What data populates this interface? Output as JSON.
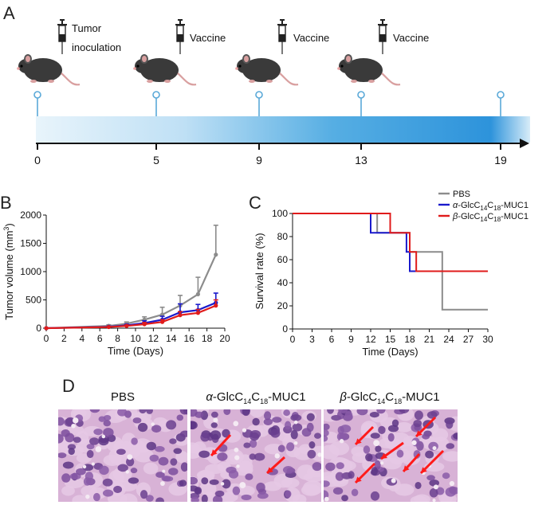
{
  "panels": {
    "a": "A",
    "b": "B",
    "c": "C",
    "d": "D"
  },
  "timeline": {
    "events": [
      {
        "day": "0",
        "line1": "Tumor",
        "line2": "inoculation"
      },
      {
        "day": "5",
        "line1": "Vaccine",
        "line2": ""
      },
      {
        "day": "9",
        "line1": "Vaccine",
        "line2": ""
      },
      {
        "day": "13",
        "line1": "Vaccine",
        "line2": ""
      },
      {
        "day": "19",
        "line1": "",
        "line2": ""
      }
    ],
    "icons": [
      "mouse-icon",
      "syringe-icon"
    ]
  },
  "chart_data": [
    {
      "id": "tumor-volume",
      "type": "line",
      "xlabel": "Time (Days)",
      "ylabel": "Tumor volume (mm³)",
      "ylabel_main": "Tumor volume (mm",
      "ylabel_sup": "3",
      "ylabel_tail": ")",
      "xlim": [
        0,
        20
      ],
      "ylim": [
        0,
        2000
      ],
      "xticks": [
        "0",
        "2",
        "4",
        "6",
        "8",
        "10",
        "12",
        "14",
        "16",
        "18",
        "20"
      ],
      "yticks": [
        "0",
        "500",
        "1000",
        "1500",
        "2000"
      ],
      "series": [
        {
          "name": "PBS",
          "color": "#8c8c8c",
          "x": [
            0,
            7,
            9,
            11,
            13,
            15,
            17,
            19
          ],
          "y": [
            0,
            40,
            80,
            150,
            240,
            400,
            600,
            1300
          ],
          "err": [
            0,
            20,
            30,
            50,
            130,
            180,
            300,
            520
          ]
        },
        {
          "name": "α-GlcC14C18-MUC1",
          "color": "#1a1acc",
          "x": [
            0,
            7,
            9,
            11,
            13,
            15,
            17,
            19
          ],
          "y": [
            0,
            25,
            50,
            90,
            150,
            280,
            320,
            450
          ],
          "err": [
            0,
            10,
            20,
            40,
            60,
            150,
            100,
            170
          ]
        },
        {
          "name": "β-GlcC14C18-MUC1",
          "color": "#e01b1b",
          "x": [
            0,
            7,
            9,
            11,
            13,
            15,
            17,
            19
          ],
          "y": [
            0,
            20,
            40,
            70,
            110,
            230,
            270,
            400
          ],
          "err": [
            0,
            8,
            15,
            30,
            40,
            60,
            60,
            100
          ]
        }
      ]
    },
    {
      "id": "survival",
      "type": "line",
      "xlabel": "Time (Days)",
      "ylabel": "Survival rate (%)",
      "xlim": [
        0,
        30
      ],
      "ylim": [
        0,
        100
      ],
      "xticks": [
        "0",
        "3",
        "6",
        "9",
        "12",
        "15",
        "18",
        "21",
        "24",
        "27",
        "30"
      ],
      "yticks": [
        "0",
        "20",
        "40",
        "60",
        "80",
        "100"
      ],
      "legend": "top-right",
      "series": [
        {
          "name": "PBS",
          "color": "#8c8c8c",
          "steps": [
            [
              0,
              100
            ],
            [
              13,
              83.3
            ],
            [
              18,
              66.7
            ],
            [
              22,
              66.7
            ],
            [
              23,
              16.7
            ],
            [
              30,
              16.7
            ]
          ]
        },
        {
          "name": "α-GlcC14C18-MUC1",
          "color": "#1a1acc",
          "steps": [
            [
              0,
              100
            ],
            [
              12,
              83.3
            ],
            [
              17.5,
              66.7
            ],
            [
              18,
              50
            ],
            [
              30,
              50
            ]
          ]
        },
        {
          "name": "β-GlcC14C18-MUC1",
          "color": "#e01b1b",
          "steps": [
            [
              0,
              100
            ],
            [
              15,
              83.3
            ],
            [
              18,
              66.7
            ],
            [
              19,
              50
            ],
            [
              30,
              50
            ]
          ]
        }
      ]
    }
  ],
  "legend": {
    "pbs": "PBS",
    "alpha_prefix": "α",
    "beta_prefix": "β",
    "glc": "-GlcC",
    "sub14": "14",
    "c": "C",
    "sub18": "18",
    "muc1": "-MUC1"
  },
  "histology": {
    "titles": {
      "pbs": "PBS"
    },
    "arrow_color": "#ff1a1a"
  }
}
